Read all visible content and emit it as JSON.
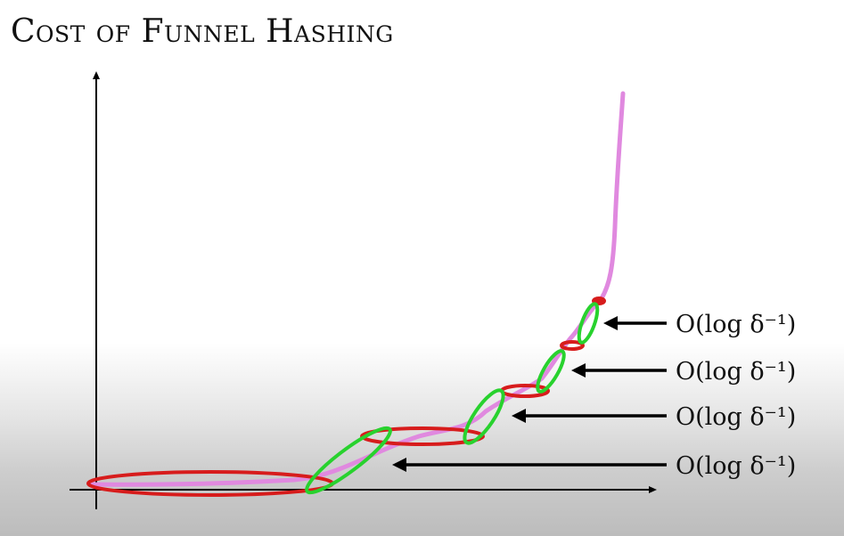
{
  "title": "Cost of Funnel Hashing",
  "colors": {
    "curve": "#e089df",
    "red_region": "#d71c1c",
    "green_region": "#28d22e",
    "axis": "#000000",
    "arrow": "#000000"
  },
  "annotations": [
    {
      "label": "O(log δ⁻¹)"
    },
    {
      "label": "O(log δ⁻¹)"
    },
    {
      "label": "O(log δ⁻¹)"
    },
    {
      "label": "O(log δ⁻¹)"
    }
  ]
}
